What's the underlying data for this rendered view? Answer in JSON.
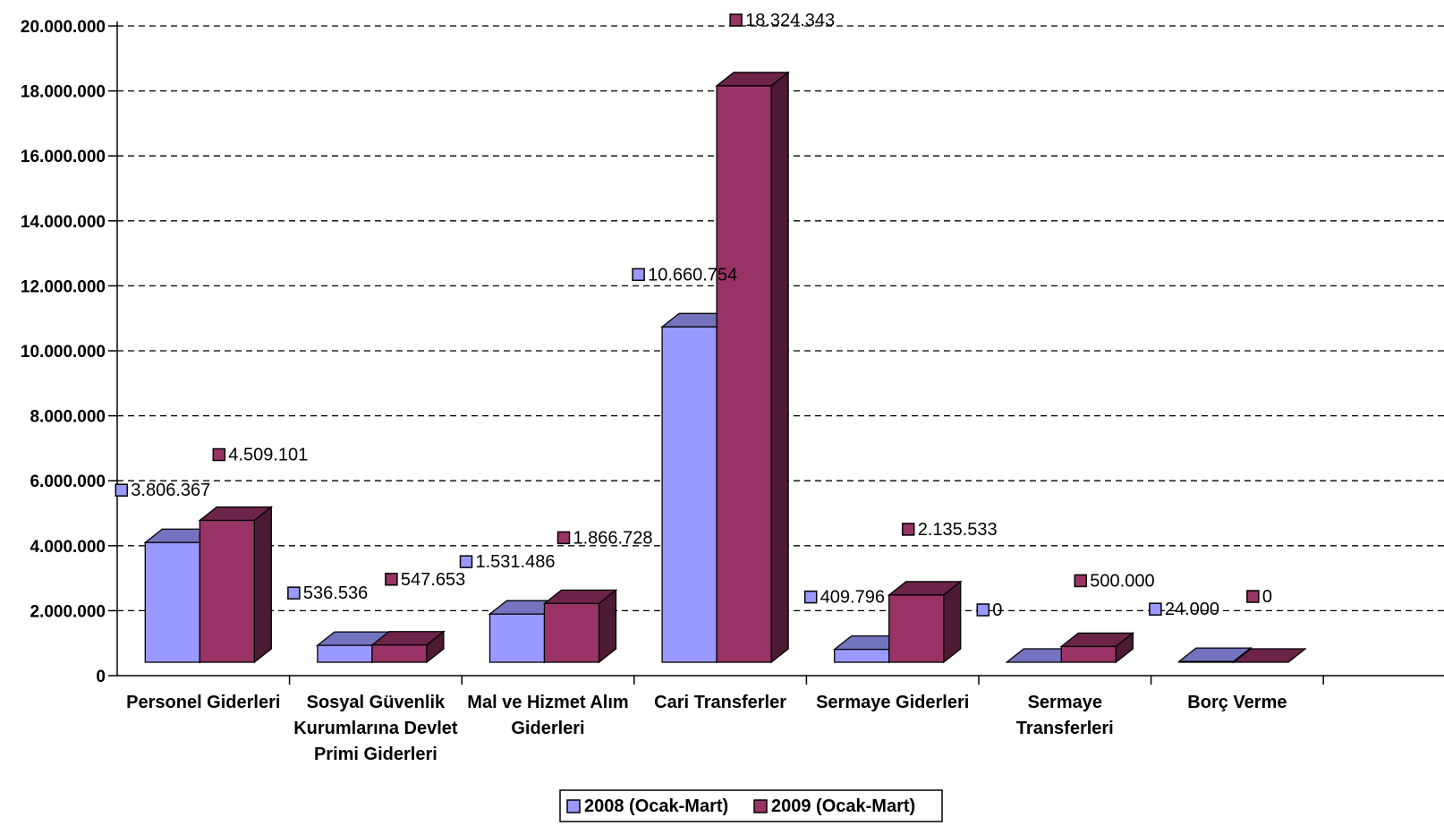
{
  "chart_data": {
    "type": "bar",
    "title": "",
    "xlabel": "",
    "ylabel": "",
    "ylim": [
      0,
      20000000
    ],
    "y_ticks": [
      "0",
      "2.000.000",
      "4.000.000",
      "6.000.000",
      "8.000.000",
      "10.000.000",
      "12.000.000",
      "14.000.000",
      "16.000.000",
      "18.000.000",
      "20.000.000"
    ],
    "grid": true,
    "grid_style": "dashed",
    "legend_position": "bottom",
    "categories": [
      [
        "Personel Giderleri"
      ],
      [
        "Sosyal Güvenlik",
        "Kurumlarına Devlet",
        "Primi Giderleri"
      ],
      [
        "Mal ve Hizmet Alım",
        "Giderleri"
      ],
      [
        "Cari Transferler"
      ],
      [
        "Sermaye Giderleri"
      ],
      [
        "Sermaye",
        "Transferleri"
      ],
      [
        "Borç Verme"
      ]
    ],
    "series": [
      {
        "name": "2008 (Ocak-Mart)",
        "color": "#9999FF",
        "values": [
          3806367,
          536536,
          1531486,
          10660754,
          409796,
          0,
          24000
        ],
        "labels": [
          "3.806.367",
          "536.536",
          "1.531.486",
          "10.660.754",
          "409.796",
          "0",
          "24.000"
        ]
      },
      {
        "name": "2009 (Ocak-Mart)",
        "color": "#993366",
        "values": [
          4509101,
          547653,
          1866728,
          18324343,
          2135533,
          500000,
          0
        ],
        "labels": [
          "4.509.101",
          "547.653",
          "1.866.728",
          "18.324.343",
          "2.135.533",
          "500.000",
          "0"
        ]
      }
    ]
  }
}
